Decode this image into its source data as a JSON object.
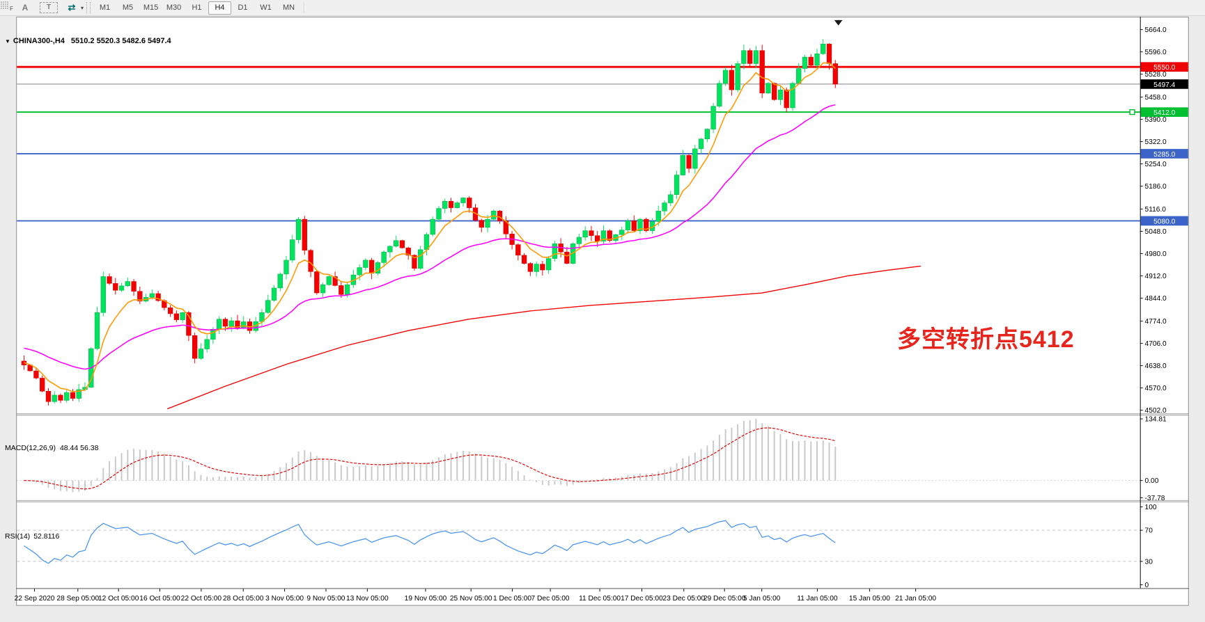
{
  "toolbar": {
    "icon_f_label": "F",
    "icon_a_label": "A",
    "icon_t_label": "T",
    "icon_arrows_glyph": "⇄",
    "icon_caret_glyph": "▾",
    "timeframes": [
      "M1",
      "M5",
      "M15",
      "M30",
      "H1",
      "H4",
      "D1",
      "W1",
      "MN"
    ],
    "active_timeframe": "H4"
  },
  "chart_header": {
    "collapse_arrow": "▼",
    "symbol_period": "CHINA300-,H4",
    "ohlc": "5510.2 5520.3 5482.6 5497.4"
  },
  "annotation": {
    "text": "多空转折点5412",
    "color": "#e8251c"
  },
  "price_axis": {
    "ticks": [
      5664.0,
      5596.0,
      5528.0,
      5458.0,
      5390.0,
      5322.0,
      5254.0,
      5186.0,
      5116.0,
      5048.0,
      4980.0,
      4912.0,
      4844.0,
      4774.0,
      4706.0,
      4638.0,
      4570.0,
      4502.0
    ],
    "badges": [
      {
        "price": 5550.0,
        "label": "5550.0",
        "bg": "#f00000",
        "fg": "#ffffff"
      },
      {
        "price": 5497.4,
        "label": "5497.4",
        "bg": "#000000",
        "fg": "#ffffff"
      },
      {
        "price": 5412.0,
        "label": "5412.0",
        "bg": "#00c032",
        "fg": "#ffffff"
      },
      {
        "price": 5285.0,
        "label": "5285.0",
        "bg": "#3c64c8",
        "fg": "#ffffff"
      },
      {
        "price": 5080.0,
        "label": "5080.0",
        "bg": "#3c64c8",
        "fg": "#ffffff"
      }
    ]
  },
  "time_axis": {
    "labels": [
      {
        "x": 27,
        "label": "22 Sep 2020"
      },
      {
        "x": 91,
        "label": "28 Sep 05:00"
      },
      {
        "x": 151,
        "label": "12 Oct 05:00"
      },
      {
        "x": 212,
        "label": "16 Oct 05:00"
      },
      {
        "x": 273,
        "label": "22 Oct 05:00"
      },
      {
        "x": 335,
        "label": "28 Oct 05:00"
      },
      {
        "x": 396,
        "label": "3 Nov 05:00"
      },
      {
        "x": 457,
        "label": "9 Nov 05:00"
      },
      {
        "x": 518,
        "label": "13 Nov 05:00"
      },
      {
        "x": 604,
        "label": "19 Nov 05:00"
      },
      {
        "x": 671,
        "label": "25 Nov 05:00"
      },
      {
        "x": 732,
        "label": "1 Dec 05:00"
      },
      {
        "x": 788,
        "label": "7 Dec 05:00"
      },
      {
        "x": 861,
        "label": "11 Dec 05:00"
      },
      {
        "x": 923,
        "label": "17 Dec 05:00"
      },
      {
        "x": 985,
        "label": "23 Dec 05:00"
      },
      {
        "x": 1045,
        "label": "29 Dec 05:00"
      },
      {
        "x": 1100,
        "label": "5 Jan 05:00"
      },
      {
        "x": 1182,
        "label": "11 Jan 05:00"
      },
      {
        "x": 1259,
        "label": "15 Jan 05:00"
      },
      {
        "x": 1327,
        "label": "21 Jan 05:00"
      }
    ]
  },
  "macd_panel": {
    "label": "MACD(12,26,9)",
    "values": "48.44 56.38",
    "axis_ticks": [
      {
        "value": 134.81,
        "label": "134.81"
      },
      {
        "value": 0,
        "label": "0.00"
      },
      {
        "value": -37.78,
        "label": "-37.78"
      }
    ],
    "histogram_color": "#c9c9c9",
    "signal_color": "#e00000",
    "max_value": 134.81
  },
  "rsi_panel": {
    "label": "RSI(14)",
    "value": "52.8116",
    "axis_ticks": [
      {
        "value": 100,
        "label": "100"
      },
      {
        "value": 70,
        "label": "70"
      },
      {
        "value": 30,
        "label": "30"
      },
      {
        "value": 0,
        "label": "0"
      }
    ],
    "levels": [
      70,
      30
    ],
    "line_color": "#4b96f0"
  },
  "chart_data": {
    "type": "candlestick",
    "symbol": "CHINA300-",
    "period": "H4",
    "ylim": [
      4492,
      5695
    ],
    "bars": 134,
    "first_open": 4652,
    "close_anchors": [
      [
        0,
        4640
      ],
      [
        1,
        4622
      ],
      [
        2,
        4600
      ],
      [
        3,
        4560
      ],
      [
        4,
        4528
      ],
      [
        5,
        4548
      ],
      [
        6,
        4532
      ],
      [
        7,
        4556
      ],
      [
        8,
        4538
      ],
      [
        9,
        4565
      ],
      [
        10,
        4572
      ],
      [
        11,
        4690
      ],
      [
        13,
        4910
      ],
      [
        15,
        4868
      ],
      [
        17,
        4895
      ],
      [
        19,
        4835
      ],
      [
        21,
        4858
      ],
      [
        23,
        4815
      ],
      [
        25,
        4778
      ],
      [
        26,
        4800
      ],
      [
        28,
        4660
      ],
      [
        30,
        4718
      ],
      [
        32,
        4780
      ],
      [
        33,
        4758
      ],
      [
        34,
        4775
      ],
      [
        35,
        4752
      ],
      [
        36,
        4772
      ],
      [
        37,
        4745
      ],
      [
        39,
        4800
      ],
      [
        41,
        4875
      ],
      [
        43,
        4960
      ],
      [
        45,
        5085
      ],
      [
        46,
        4990
      ],
      [
        48,
        4860
      ],
      [
        50,
        4910
      ],
      [
        52,
        4855
      ],
      [
        54,
        4915
      ],
      [
        56,
        4960
      ],
      [
        57,
        4920
      ],
      [
        59,
        4985
      ],
      [
        61,
        5020
      ],
      [
        63,
        4975
      ],
      [
        64,
        4935
      ],
      [
        65,
        4992
      ],
      [
        67,
        5085
      ],
      [
        68,
        5118
      ],
      [
        69,
        5140
      ],
      [
        70,
        5120
      ],
      [
        72,
        5150
      ],
      [
        73,
        5120
      ],
      [
        74,
        5082
      ],
      [
        75,
        5060
      ],
      [
        77,
        5110
      ],
      [
        78,
        5080
      ],
      [
        79,
        5040
      ],
      [
        81,
        4975
      ],
      [
        83,
        4925
      ],
      [
        84,
        4948
      ],
      [
        85,
        4930
      ],
      [
        86,
        4965
      ],
      [
        87,
        5010
      ],
      [
        88,
        4985
      ],
      [
        89,
        4950
      ],
      [
        90,
        5010
      ],
      [
        92,
        5050
      ],
      [
        93,
        5035
      ],
      [
        94,
        5018
      ],
      [
        95,
        5050
      ],
      [
        96,
        5020
      ],
      [
        97,
        5038
      ],
      [
        98,
        5052
      ],
      [
        99,
        5080
      ],
      [
        100,
        5050
      ],
      [
        101,
        5085
      ],
      [
        102,
        5050
      ],
      [
        103,
        5078
      ],
      [
        104,
        5110
      ],
      [
        105,
        5135
      ],
      [
        106,
        5160
      ],
      [
        107,
        5220
      ],
      [
        108,
        5280
      ],
      [
        109,
        5240
      ],
      [
        110,
        5300
      ],
      [
        111,
        5330
      ],
      [
        112,
        5360
      ],
      [
        113,
        5430
      ],
      [
        114,
        5500
      ],
      [
        115,
        5540
      ],
      [
        116,
        5480
      ],
      [
        117,
        5560
      ],
      [
        118,
        5600
      ],
      [
        119,
        5560
      ],
      [
        120,
        5600
      ],
      [
        121,
        5470
      ],
      [
        122,
        5500
      ],
      [
        123,
        5450
      ],
      [
        124,
        5480
      ],
      [
        125,
        5425
      ],
      [
        126,
        5500
      ],
      [
        127,
        5545
      ],
      [
        128,
        5580
      ],
      [
        129,
        5555
      ],
      [
        130,
        5590
      ],
      [
        131,
        5620
      ],
      [
        132,
        5560
      ],
      [
        133,
        5497.4
      ]
    ],
    "colors": {
      "up": "#00e35f",
      "up_border": "#00a843",
      "down": "#f40000",
      "down_border": "#d40000"
    },
    "moving_averages": [
      {
        "name": "fast",
        "color": "#ff9900",
        "alpha": 0.25,
        "seed": 4650
      },
      {
        "name": "medium",
        "color": "#ff00ff",
        "alpha": 0.065,
        "seed": 4695
      }
    ],
    "long_ma": {
      "color": "#f40000",
      "points": [
        [
          23.5,
          4506
        ],
        [
          33,
          4575
        ],
        [
          43,
          4642
        ],
        [
          53,
          4700
        ],
        [
          63,
          4745
        ],
        [
          73,
          4780
        ],
        [
          83,
          4805
        ],
        [
          93,
          4822
        ],
        [
          103,
          4835
        ],
        [
          113,
          4848
        ],
        [
          121,
          4860
        ],
        [
          128,
          4885
        ],
        [
          135,
          4912
        ],
        [
          141,
          4928
        ],
        [
          147,
          4942
        ]
      ]
    },
    "horizontal_lines": [
      {
        "price": 5550.0,
        "color": "#f00000",
        "width": 3
      },
      {
        "price": 5497.4,
        "color": "#808080",
        "width": 1
      },
      {
        "price": 5412.0,
        "color": "#00c032",
        "width": 2,
        "marker": true
      },
      {
        "price": 5285.0,
        "color": "#3c64c8",
        "width": 2
      },
      {
        "price": 5080.0,
        "color": "#3c64c8",
        "width": 2
      }
    ],
    "shift_marker_x": 1213
  }
}
